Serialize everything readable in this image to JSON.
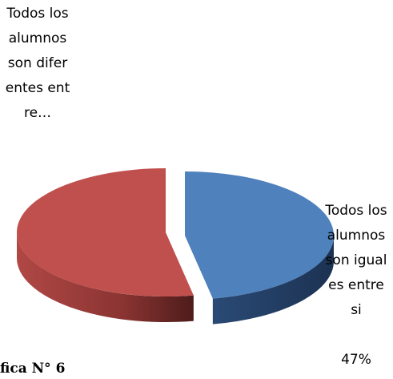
{
  "chart_data": {
    "type": "pie",
    "categories": [
      "Todos los alumnos son iguales entre si",
      "Todos los alumnos son diferentes entre…"
    ],
    "values": [
      47,
      53
    ],
    "value_labels": [
      "47%",
      null
    ],
    "colors": [
      "#4f81bd",
      "#c0504d"
    ],
    "caption": "fica N° 6"
  }
}
